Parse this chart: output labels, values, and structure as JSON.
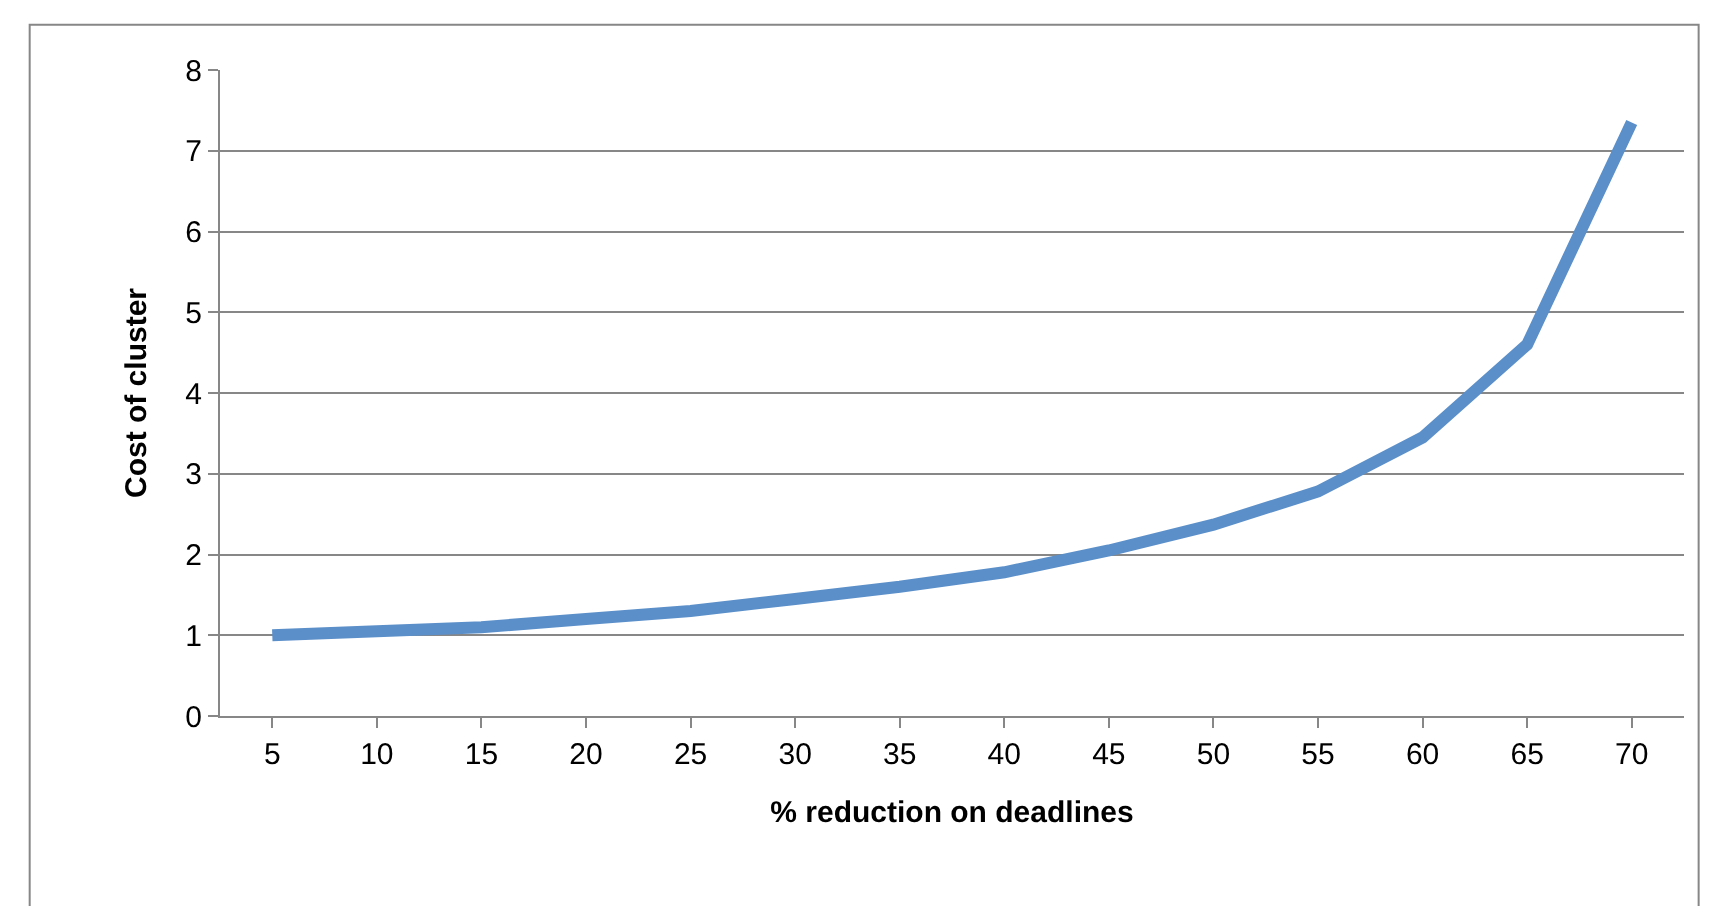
{
  "chart_data": {
    "type": "line",
    "xlabel": "% reduction on deadlines",
    "ylabel": "Cost of cluster",
    "categories": [
      "5",
      "10",
      "15",
      "20",
      "25",
      "30",
      "35",
      "40",
      "45",
      "50",
      "55",
      "60",
      "65",
      "70"
    ],
    "series": [
      {
        "color": "#5b8fc9",
        "values": [
          1.0,
          1.05,
          1.1,
          1.2,
          1.3,
          1.45,
          1.6,
          1.78,
          2.05,
          2.37,
          2.78,
          3.45,
          4.6,
          7.35
        ]
      }
    ],
    "ylim": [
      0,
      8
    ],
    "yticks": [
      0,
      1,
      2,
      3,
      4,
      5,
      6,
      7,
      8
    ],
    "grid": "y",
    "marker": "none",
    "line_style": "solid"
  }
}
